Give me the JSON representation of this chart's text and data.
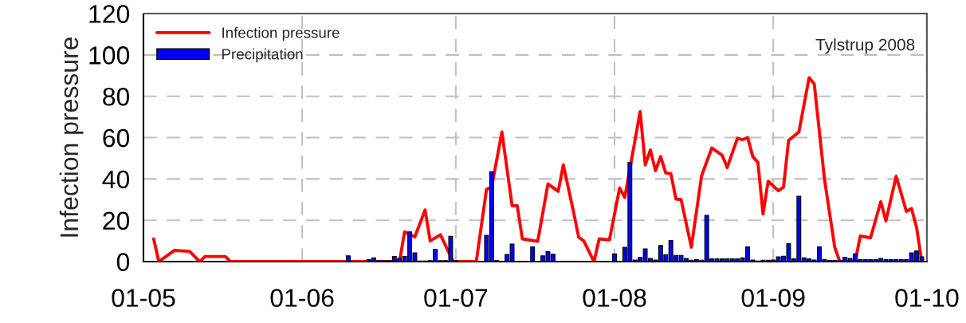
{
  "chart_data": {
    "type": "line",
    "ylabel": "Infection pressure",
    "annotations": [
      "Tylstrup 2008"
    ],
    "xlim": [
      "2008-05-01",
      "2008-10-01"
    ],
    "xticks": [
      {
        "value": "2008-05-01",
        "label": "01-05"
      },
      {
        "value": "2008-06-01",
        "label": "01-06"
      },
      {
        "value": "2008-07-01",
        "label": "01-07"
      },
      {
        "value": "2008-08-01",
        "label": "01-08"
      },
      {
        "value": "2008-09-01",
        "label": "01-09"
      },
      {
        "value": "2008-10-01",
        "label": "01-10"
      }
    ],
    "ylim": [
      0,
      120
    ],
    "yticks": [
      0,
      20,
      40,
      60,
      80,
      100,
      120
    ],
    "grid": true,
    "legend": "top left",
    "series": [
      {
        "name": "Infection pressure",
        "color": "#ff0000",
        "x": [
          "2008-05-03",
          "2008-05-04",
          "2008-05-07",
          "2008-05-10",
          "2008-05-12",
          "2008-05-13",
          "2008-05-17",
          "2008-05-18",
          "2008-06-20",
          "2008-06-21",
          "2008-06-23",
          "2008-06-25",
          "2008-06-26",
          "2008-06-28",
          "2008-06-30T12:00",
          "2008-07-05",
          "2008-07-07",
          "2008-07-08",
          "2008-07-10",
          "2008-07-12",
          "2008-07-13",
          "2008-07-14",
          "2008-07-17",
          "2008-07-19",
          "2008-07-21",
          "2008-07-22",
          "2008-07-24",
          "2008-07-25",
          "2008-07-26",
          "2008-07-28",
          "2008-07-29",
          "2008-07-31",
          "2008-08-02",
          "2008-08-03",
          "2008-08-06",
          "2008-08-07",
          "2008-08-08",
          "2008-08-09",
          "2008-08-10",
          "2008-08-11",
          "2008-08-12",
          "2008-08-13",
          "2008-08-14",
          "2008-08-16",
          "2008-08-18",
          "2008-08-20",
          "2008-08-22",
          "2008-08-23",
          "2008-08-25",
          "2008-08-26",
          "2008-08-27",
          "2008-08-28",
          "2008-08-29",
          "2008-08-30",
          "2008-08-31",
          "2008-09-02",
          "2008-09-03",
          "2008-09-04",
          "2008-09-06",
          "2008-09-08",
          "2008-09-09",
          "2008-09-11",
          "2008-09-13",
          "2008-09-14",
          "2008-09-17",
          "2008-09-18",
          "2008-09-20",
          "2008-09-22",
          "2008-09-23",
          "2008-09-25",
          "2008-09-27",
          "2008-09-28",
          "2008-09-29",
          "2008-09-30"
        ],
        "values": [
          11,
          0,
          5.4,
          5,
          0,
          2.5,
          2.5,
          0,
          0,
          14.4,
          12,
          25,
          10,
          13,
          0,
          0,
          35,
          36,
          62.7,
          27,
          27,
          11,
          9.8,
          37.6,
          34,
          46.8,
          24,
          11.8,
          10,
          0,
          11,
          10.5,
          35.6,
          31,
          72.6,
          46.8,
          54,
          44,
          50.8,
          42.9,
          42.5,
          30.3,
          30,
          7,
          41.5,
          55,
          51.5,
          45.5,
          59.7,
          59,
          60,
          50.8,
          48,
          23,
          38.9,
          34.3,
          36,
          58.7,
          62.7,
          89,
          86,
          40,
          7,
          0,
          0,
          12.4,
          11.5,
          29,
          19.7,
          41.3,
          24.3,
          25.7,
          16.4,
          0
        ]
      },
      {
        "name": "Precipitation",
        "type": "bar",
        "color": "#0000ff",
        "x": [
          "2008-06-10",
          "2008-06-14",
          "2008-06-15",
          "2008-06-16",
          "2008-06-17",
          "2008-06-18",
          "2008-06-19",
          "2008-06-20",
          "2008-06-21",
          "2008-06-22",
          "2008-06-23",
          "2008-06-24",
          "2008-06-25",
          "2008-06-26",
          "2008-06-27",
          "2008-06-28",
          "2008-06-29",
          "2008-06-30",
          "2008-07-01",
          "2008-07-07",
          "2008-07-08",
          "2008-07-09",
          "2008-07-11",
          "2008-07-12",
          "2008-07-16",
          "2008-07-18",
          "2008-07-19",
          "2008-07-20",
          "2008-08-01",
          "2008-08-03",
          "2008-08-04",
          "2008-08-05",
          "2008-08-06",
          "2008-08-07",
          "2008-08-08",
          "2008-08-09",
          "2008-08-10",
          "2008-08-11",
          "2008-08-12",
          "2008-08-13",
          "2008-08-14",
          "2008-08-15",
          "2008-08-16",
          "2008-08-17",
          "2008-08-18",
          "2008-08-19",
          "2008-08-20",
          "2008-08-21",
          "2008-08-22",
          "2008-08-23",
          "2008-08-24",
          "2008-08-25",
          "2008-08-26",
          "2008-08-27",
          "2008-08-28",
          "2008-08-29",
          "2008-08-30",
          "2008-08-31",
          "2008-09-01",
          "2008-09-02",
          "2008-09-03",
          "2008-09-04",
          "2008-09-05",
          "2008-09-06",
          "2008-09-07",
          "2008-09-08",
          "2008-09-09",
          "2008-09-10",
          "2008-09-11",
          "2008-09-12",
          "2008-09-13",
          "2008-09-14",
          "2008-09-15",
          "2008-09-16",
          "2008-09-17",
          "2008-09-18",
          "2008-09-19",
          "2008-09-20",
          "2008-09-21",
          "2008-09-22",
          "2008-09-23",
          "2008-09-24",
          "2008-09-25",
          "2008-09-26",
          "2008-09-27",
          "2008-09-28",
          "2008-09-29",
          "2008-09-30"
        ],
        "values": [
          2.8,
          1,
          1.8,
          0.5,
          0.5,
          0.5,
          2.5,
          1.5,
          2.5,
          14.4,
          4.2,
          0.3,
          0.3,
          0.5,
          6,
          0.5,
          0.5,
          12.2,
          0.5,
          12.7,
          43.5,
          0.5,
          3.5,
          8.5,
          7.1,
          2.8,
          4.8,
          3.6,
          3.8,
          6.9,
          47.9,
          0.8,
          2,
          6.2,
          1.5,
          0.8,
          7.8,
          3.4,
          10.2,
          3,
          3,
          1.5,
          0.7,
          1,
          0.7,
          22.4,
          1.3,
          1.3,
          1.3,
          1.3,
          1.3,
          1.3,
          1.8,
          7.1,
          0.8,
          0.3,
          0.7,
          0.7,
          0.8,
          2.3,
          2.6,
          8.7,
          1.3,
          31.6,
          1.8,
          1.3,
          0.8,
          7.1,
          1,
          0.6,
          0.6,
          0.6,
          2.1,
          1.5,
          3.8,
          1,
          1,
          1,
          1,
          1.5,
          1,
          1,
          1,
          1,
          1,
          4.2,
          5.2,
          2.3
        ]
      }
    ]
  }
}
